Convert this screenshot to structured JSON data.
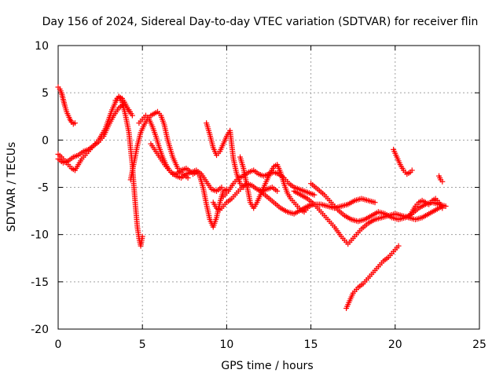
{
  "chart_data": {
    "type": "scatter",
    "title": "Day 156 of 2024, Sidereal Day-to-day VTEC variation (SDTVAR) for receiver flin",
    "xlabel": "GPS time / hours",
    "ylabel": "SDTVAR / TECUs",
    "xlim": [
      0,
      25
    ],
    "ylim": [
      -20,
      10
    ],
    "xticks": [
      0,
      5,
      10,
      15,
      20,
      25
    ],
    "yticks": [
      -20,
      -15,
      -10,
      -5,
      0,
      5,
      10
    ],
    "grid": true,
    "marker": "+",
    "color": "#ff0000",
    "series": [
      {
        "name": "s1",
        "x": [
          0.0,
          0.1,
          0.2,
          0.3,
          0.4,
          0.5,
          0.6,
          0.7,
          0.8,
          0.9,
          1.0
        ],
        "y": [
          5.6,
          5.4,
          5.0,
          4.3,
          3.6,
          3.0,
          2.6,
          2.2,
          1.9,
          1.7,
          1.8
        ]
      },
      {
        "name": "s2",
        "x": [
          0.0,
          0.2,
          0.4,
          0.6,
          0.8,
          1.0,
          1.2,
          1.4,
          1.6,
          1.8,
          2.0,
          2.2,
          2.4,
          2.6,
          2.8,
          3.0,
          3.2,
          3.4,
          3.6,
          3.8,
          4.0,
          4.2
        ],
        "y": [
          -1.5,
          -1.8,
          -2.2,
          -2.6,
          -3.0,
          -3.2,
          -2.6,
          -2.0,
          -1.6,
          -1.2,
          -0.8,
          -0.4,
          0.0,
          0.6,
          1.2,
          2.2,
          3.2,
          4.0,
          4.6,
          4.4,
          3.8,
          3.0
        ]
      },
      {
        "name": "s3",
        "x": [
          0.0,
          0.3,
          0.6,
          0.9,
          1.2,
          1.5,
          1.8,
          2.1,
          2.4,
          2.7,
          3.0,
          3.3,
          3.6,
          3.9,
          4.2,
          4.4
        ],
        "y": [
          -2.0,
          -2.4,
          -2.2,
          -1.8,
          -1.6,
          -1.2,
          -1.0,
          -0.6,
          -0.2,
          0.4,
          1.6,
          2.6,
          3.4,
          3.8,
          3.2,
          2.6
        ]
      },
      {
        "name": "s4",
        "x": [
          3.4,
          3.6,
          3.8,
          4.0,
          4.2,
          4.4,
          4.5,
          4.6,
          4.7,
          4.8,
          4.9,
          5.0
        ],
        "y": [
          4.2,
          4.6,
          4.0,
          2.6,
          0.8,
          -2.6,
          -5.0,
          -7.2,
          -9.2,
          -10.4,
          -11.2,
          -10.2
        ]
      },
      {
        "name": "s5",
        "x": [
          4.3,
          4.5,
          4.7,
          4.9,
          5.1,
          5.3,
          5.5,
          5.7,
          5.9,
          6.1,
          6.3,
          6.5,
          6.8,
          7.1,
          7.4,
          7.7
        ],
        "y": [
          -4.2,
          -2.4,
          -0.6,
          0.8,
          1.6,
          2.2,
          2.6,
          2.8,
          3.0,
          2.6,
          1.6,
          0.0,
          -1.8,
          -3.0,
          -3.6,
          -4.0
        ]
      },
      {
        "name": "s6",
        "x": [
          4.8,
          5.0,
          5.2,
          5.4,
          5.6,
          5.8,
          6.0,
          6.2,
          6.4,
          6.6,
          6.8,
          7.0,
          7.3,
          7.6,
          7.9
        ],
        "y": [
          1.8,
          2.2,
          2.6,
          2.2,
          1.4,
          0.4,
          -0.8,
          -1.8,
          -2.6,
          -3.2,
          -3.6,
          -3.6,
          -3.2,
          -3.0,
          -3.4
        ]
      },
      {
        "name": "s7",
        "x": [
          5.5,
          5.8,
          6.1,
          6.4,
          6.7,
          7.0,
          7.3,
          7.6,
          7.9,
          8.2,
          8.5,
          8.8,
          9.1,
          9.4,
          9.7
        ],
        "y": [
          -0.4,
          -1.2,
          -2.0,
          -2.8,
          -3.4,
          -3.8,
          -4.0,
          -3.6,
          -3.4,
          -3.2,
          -3.6,
          -4.4,
          -5.2,
          -5.4,
          -5.0
        ]
      },
      {
        "name": "s8",
        "x": [
          8.0,
          8.2,
          8.4,
          8.6,
          8.8,
          9.0,
          9.2,
          9.4,
          9.6,
          9.8,
          10.0
        ],
        "y": [
          -3.6,
          -3.4,
          -3.8,
          -5.0,
          -6.8,
          -8.4,
          -9.2,
          -8.2,
          -6.6,
          -5.4,
          -5.2
        ]
      },
      {
        "name": "s9",
        "x": [
          8.8,
          9.0,
          9.2,
          9.4,
          9.6,
          9.8,
          10.0,
          10.2,
          10.4,
          10.6,
          10.8,
          11.0
        ],
        "y": [
          1.8,
          0.6,
          -0.8,
          -1.6,
          -1.2,
          -0.4,
          0.4,
          1.0,
          -2.0,
          -3.6,
          -4.6,
          -5.0
        ]
      },
      {
        "name": "s10",
        "x": [
          9.2,
          9.4,
          9.6,
          9.8,
          10.0,
          10.3,
          10.6,
          10.9,
          11.2,
          11.5,
          11.8,
          12.1,
          12.4,
          12.7,
          13.0
        ],
        "y": [
          -6.6,
          -7.2,
          -7.4,
          -7.0,
          -6.6,
          -6.2,
          -5.6,
          -5.0,
          -4.6,
          -4.8,
          -5.2,
          -5.4,
          -5.2,
          -5.0,
          -5.4
        ]
      },
      {
        "name": "s11",
        "x": [
          9.8,
          10.1,
          10.4,
          10.7,
          11.0,
          11.3,
          11.6,
          11.9,
          12.2,
          12.5,
          12.8,
          13.1,
          13.4,
          13.7,
          14.0,
          14.3,
          14.6,
          14.9,
          15.2
        ],
        "y": [
          -6.0,
          -5.4,
          -4.6,
          -4.0,
          -3.8,
          -3.4,
          -3.2,
          -3.6,
          -3.8,
          -3.6,
          -3.4,
          -3.6,
          -4.0,
          -4.6,
          -5.0,
          -5.2,
          -5.4,
          -5.6,
          -5.8
        ]
      },
      {
        "name": "s12",
        "x": [
          10.8,
          11.0,
          11.2,
          11.4,
          11.6,
          11.8,
          12.0,
          12.2,
          12.4,
          12.6,
          12.8,
          13.0,
          13.2,
          13.4,
          13.6,
          13.8,
          14.0,
          14.2,
          14.4,
          14.6,
          14.8,
          15.0
        ],
        "y": [
          -1.8,
          -3.0,
          -4.8,
          -6.6,
          -7.2,
          -6.6,
          -5.8,
          -5.0,
          -4.2,
          -3.4,
          -2.8,
          -2.6,
          -3.4,
          -4.6,
          -5.6,
          -6.2,
          -6.6,
          -7.0,
          -7.4,
          -7.6,
          -7.2,
          -6.8
        ]
      },
      {
        "name": "s13",
        "x": [
          12.0,
          12.4,
          12.8,
          13.2,
          13.6,
          14.0,
          14.4,
          14.8,
          15.2,
          15.6,
          16.0,
          16.4,
          16.8,
          17.2,
          17.6,
          18.0,
          18.4,
          18.8
        ],
        "y": [
          -5.4,
          -6.0,
          -6.6,
          -7.2,
          -7.6,
          -7.8,
          -7.4,
          -7.0,
          -6.8,
          -6.8,
          -7.0,
          -7.2,
          -7.0,
          -6.8,
          -6.4,
          -6.2,
          -6.4,
          -6.6
        ]
      },
      {
        "name": "s14",
        "x": [
          14.0,
          14.4,
          14.8,
          15.2,
          15.6,
          16.0,
          16.4,
          16.8,
          17.2,
          17.6,
          18.0,
          18.4,
          18.8,
          19.2,
          19.6,
          20.0,
          20.4,
          20.8,
          21.2,
          21.6,
          22.0,
          22.4,
          22.8
        ],
        "y": [
          -5.4,
          -5.8,
          -6.2,
          -6.8,
          -7.6,
          -8.4,
          -9.2,
          -10.2,
          -11.0,
          -10.2,
          -9.4,
          -8.8,
          -8.4,
          -8.2,
          -8.0,
          -7.8,
          -8.0,
          -8.2,
          -8.4,
          -8.2,
          -7.8,
          -7.4,
          -7.0
        ]
      },
      {
        "name": "s15",
        "x": [
          15.0,
          15.4,
          15.8,
          16.2,
          16.6,
          17.0,
          17.4,
          17.8,
          18.2,
          18.6,
          19.0,
          19.4,
          19.8,
          20.2,
          20.6,
          21.0,
          21.4,
          21.8,
          22.2,
          22.6,
          23.0
        ],
        "y": [
          -4.6,
          -5.2,
          -5.8,
          -6.6,
          -7.4,
          -8.0,
          -8.4,
          -8.6,
          -8.4,
          -8.0,
          -7.6,
          -7.8,
          -8.2,
          -8.4,
          -8.2,
          -7.8,
          -7.2,
          -6.8,
          -6.6,
          -6.8,
          -7.0
        ]
      },
      {
        "name": "s16",
        "x": [
          17.1,
          17.3,
          17.5,
          17.8,
          18.1,
          18.4,
          18.7,
          19.0,
          19.3,
          19.6,
          19.9,
          20.2
        ],
        "y": [
          -17.8,
          -17.0,
          -16.2,
          -15.6,
          -15.2,
          -14.6,
          -14.0,
          -13.4,
          -12.8,
          -12.4,
          -11.8,
          -11.2
        ]
      },
      {
        "name": "s17",
        "x": [
          19.9,
          20.1,
          20.3,
          20.5,
          20.7,
          20.9,
          21.0
        ],
        "y": [
          -1.0,
          -1.8,
          -2.6,
          -3.2,
          -3.6,
          -3.4,
          -3.2
        ]
      },
      {
        "name": "s18",
        "x": [
          20.8,
          21.0,
          21.2,
          21.4,
          21.6,
          21.8,
          22.0,
          22.2,
          22.4,
          22.6,
          22.8
        ],
        "y": [
          -8.2,
          -7.6,
          -7.0,
          -6.6,
          -6.4,
          -6.6,
          -6.8,
          -6.4,
          -6.2,
          -6.6,
          -7.2
        ]
      },
      {
        "name": "s19",
        "x": [
          22.6,
          22.7,
          22.8
        ],
        "y": [
          -3.8,
          -4.2,
          -4.4
        ]
      }
    ]
  }
}
